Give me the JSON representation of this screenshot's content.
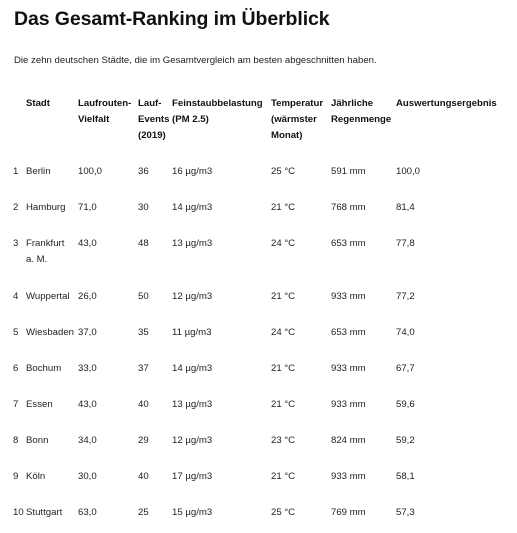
{
  "page": {
    "title": "Das Gesamt-Ranking im Überblick",
    "subtitle": "Die zehn deutschen Städte, die im Gesamtvergleich am besten abgeschnitten haben."
  },
  "table": {
    "headers": {
      "city": "Stadt",
      "routes": [
        "Laufrouten-",
        "Vielfalt"
      ],
      "events": [
        "Lauf-",
        "Events",
        "(2019)"
      ],
      "dust": [
        "Feinstaubbelastung",
        "(PM 2.5)"
      ],
      "temp": [
        "Temperatur",
        "(wärmster",
        "Monat)"
      ],
      "rain": [
        "Jährliche",
        "Regenmenge"
      ],
      "score": "Auswertungsergebnis"
    },
    "rows": [
      {
        "rank": "1",
        "city": [
          "Berlin"
        ],
        "routes": "100,0",
        "events": "36",
        "dust": "16 µg/m3",
        "temp": "25 °C",
        "rain": "591 mm",
        "score": "100,0"
      },
      {
        "rank": "2",
        "city": [
          "Hamburg"
        ],
        "routes": "71,0",
        "events": "30",
        "dust": "14 µg/m3",
        "temp": "21 °C",
        "rain": "768 mm",
        "score": "81,4"
      },
      {
        "rank": "3",
        "city": [
          "Frankfurt",
          "a. M."
        ],
        "routes": "43,0",
        "events": "48",
        "dust": "13  µg/m3",
        "temp": "24 °C",
        "rain": "653 mm",
        "score": "77,8"
      },
      {
        "rank": "4",
        "city": [
          "Wuppertal"
        ],
        "routes": "26,0",
        "events": "50",
        "dust": "12 µg/m3",
        "temp": "21 °C",
        "rain": "933 mm",
        "score": "77,2"
      },
      {
        "rank": "5",
        "city": [
          "Wiesbaden"
        ],
        "routes": "37,0",
        "events": "35",
        "dust": "11 µg/m3",
        "temp": "24 °C",
        "rain": "653 mm",
        "score": "74,0"
      },
      {
        "rank": "6",
        "city": [
          "Bochum"
        ],
        "routes": "33,0",
        "events": "37",
        "dust": "14 µg/m3",
        "temp": "21 °C",
        "rain": "933 mm",
        "score": "67,7"
      },
      {
        "rank": "7",
        "city": [
          "Essen"
        ],
        "routes": "43,0",
        "events": "40",
        "dust": "13 µg/m3",
        "temp": "21 °C",
        "rain": "933 mm",
        "score": "59,6"
      },
      {
        "rank": "8",
        "city": [
          "Bonn"
        ],
        "routes": "34,0",
        "events": "29",
        "dust": "12 µg/m3",
        "temp": "23 °C",
        "rain": "824 mm",
        "score": "59,2"
      },
      {
        "rank": "9",
        "city": [
          "Köln"
        ],
        "routes": "30,0",
        "events": "40",
        "dust": "17 µg/m3",
        "temp": "21 °C",
        "rain": "933 mm",
        "score": "58,1"
      },
      {
        "rank": "10",
        "city": [
          "Stuttgart"
        ],
        "routes": "63,0",
        "events": "25",
        "dust": "15 µg/m3",
        "temp": "25 °C",
        "rain": "769 mm",
        "score": "57,3"
      }
    ]
  }
}
